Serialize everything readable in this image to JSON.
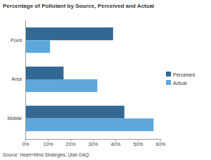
{
  "chart_data": {
    "type": "bar",
    "orientation": "horizontal",
    "title": "Percentage of Pollutant by Source, Perceived and Actual",
    "categories": [
      "Point",
      "Area",
      "Mobile"
    ],
    "series": [
      {
        "name": "Perceived",
        "color": "#336893",
        "values": [
          39,
          17,
          44
        ]
      },
      {
        "name": "Actual",
        "color": "#5ea7dc",
        "values": [
          11,
          32,
          57
        ]
      }
    ],
    "xlim": [
      0,
      60
    ],
    "xticks": [
      {
        "value": 0,
        "label": "0%"
      },
      {
        "value": 10,
        "label": "10%"
      },
      {
        "value": 20,
        "label": "20%"
      },
      {
        "value": 30,
        "label": "30%"
      },
      {
        "value": 40,
        "label": "40%"
      },
      {
        "value": 50,
        "label": "50%"
      },
      {
        "value": 60,
        "label": "60%"
      }
    ],
    "grid": false,
    "legend": "right",
    "annotations": [
      "Source: Heart+Mind Strategies; Utah DAQ."
    ]
  }
}
